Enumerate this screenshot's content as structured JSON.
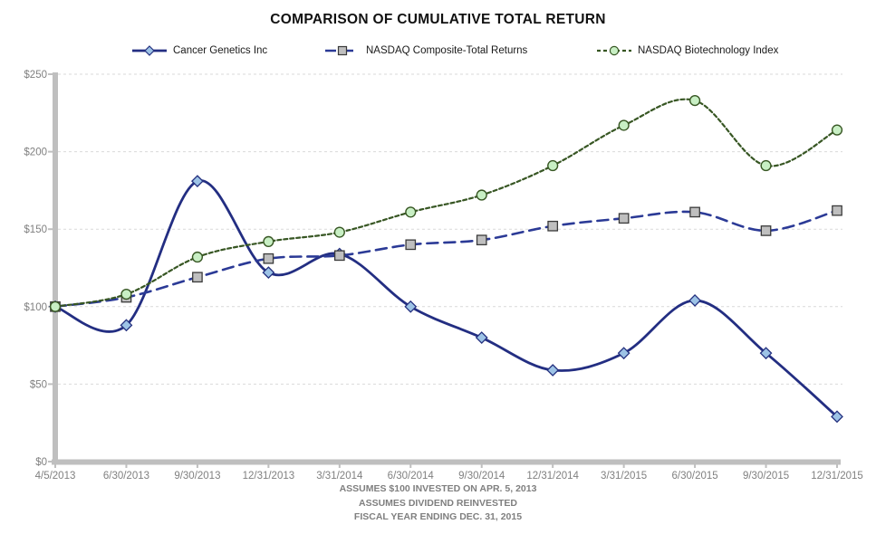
{
  "chart_data": {
    "type": "line",
    "title": "COMPARISON OF CUMULATIVE TOTAL RETURN",
    "xlabel": "",
    "ylabel": "",
    "categories": [
      "4/5/2013",
      "6/30/2013",
      "9/30/2013",
      "12/31/2013",
      "3/31/2014",
      "6/30/2014",
      "9/30/2014",
      "12/31/2014",
      "3/31/2015",
      "6/30/2015",
      "9/30/2015",
      "12/31/2015"
    ],
    "series": [
      {
        "name": "Cancer Genetics Inc",
        "values": [
          100,
          88,
          181,
          122,
          134,
          100,
          80,
          59,
          70,
          104,
          70,
          29
        ],
        "line_color": "#232E82",
        "dash": "solid",
        "marker": "diamond",
        "marker_fill": "#9DC3E6",
        "marker_stroke": "#24307F"
      },
      {
        "name": "NASDAQ Composite-Total Returns",
        "values": [
          100,
          106,
          119,
          131,
          133,
          140,
          143,
          152,
          157,
          161,
          149,
          162
        ],
        "line_color": "#2B3A96",
        "dash": "long-dash",
        "marker": "square",
        "marker_fill": "#BFBFBF",
        "marker_stroke": "#3A3A3A"
      },
      {
        "name": "NASDAQ Biotechnology Index",
        "values": [
          100,
          108,
          132,
          142,
          148,
          161,
          172,
          191,
          217,
          233,
          191,
          214
        ],
        "line_color": "#375623",
        "dash": "short-dash",
        "marker": "circle",
        "marker_fill": "#C8EFC4",
        "marker_stroke": "#375623"
      }
    ],
    "ylim": [
      0,
      250
    ],
    "ytick_step": 50,
    "ytick_labels": [
      "$0",
      "$50",
      "$100",
      "$150",
      "$200",
      "$250"
    ],
    "grid": true,
    "legend_position": "top",
    "smooth_lines": true
  },
  "footer": {
    "line1": "ASSUMES $100 INVESTED ON APR. 5, 2013",
    "line2": "ASSUMES DIVIDEND REINVESTED",
    "line3": "FISCAL YEAR ENDING DEC. 31, 2015"
  },
  "colors": {
    "grid_line": "#D9D9D9",
    "axis_line": "#BFBFBF",
    "tick_text": "#808080",
    "title_text": "#111111",
    "footer_text": "#7F7F7F"
  }
}
